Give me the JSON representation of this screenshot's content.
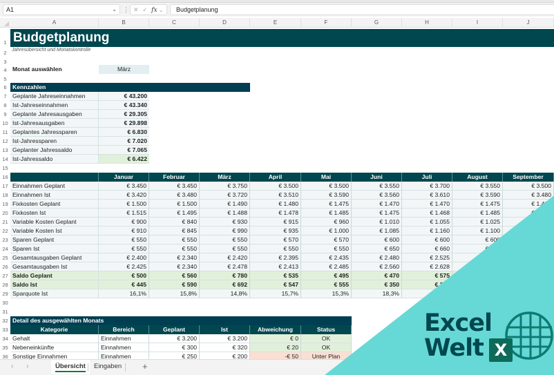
{
  "formula_bar": {
    "name_box": "A1",
    "formula": "Budgetplanung",
    "fx_label": "fx"
  },
  "columns": [
    "A",
    "B",
    "C",
    "D",
    "E",
    "F",
    "G",
    "H",
    "I",
    "J"
  ],
  "rows": [
    "1",
    "2",
    "3",
    "4",
    "5",
    "6",
    "7",
    "8",
    "9",
    "10",
    "11",
    "12",
    "13",
    "14",
    "15",
    "16",
    "17",
    "18",
    "19",
    "20",
    "21",
    "22",
    "23",
    "24",
    "25",
    "26",
    "27",
    "28",
    "29",
    "30",
    "31",
    "32",
    "33",
    "34",
    "35",
    "36"
  ],
  "header": {
    "title": "Budgetplanung",
    "subtitle": "Jahresübersicht und Monatskontrolle"
  },
  "month_selector": {
    "label": "Monat auswählen",
    "value": "März"
  },
  "kpis": {
    "title": "Kennzahlen",
    "items": [
      {
        "label": "Geplante Jahreseinnahmen",
        "value": "€ 43.200"
      },
      {
        "label": "Ist-Jahreseinnahmen",
        "value": "€ 43.340"
      },
      {
        "label": "Geplante Jahresausgaben",
        "value": "€ 29.305"
      },
      {
        "label": "Ist-Jahresausgaben",
        "value": "€ 29.898"
      },
      {
        "label": "Geplantes Jahressparen",
        "value": "€ 6.830"
      },
      {
        "label": "Ist-Jahressparen",
        "value": "€ 7.020"
      },
      {
        "label": "Geplanter Jahressaldo",
        "value": "€ 7.065"
      },
      {
        "label": "Ist-Jahressaldo",
        "value": "€ 6.422"
      }
    ]
  },
  "monthly": {
    "months": [
      "Januar",
      "Februar",
      "März",
      "April",
      "Mai",
      "Juni",
      "Juli",
      "August",
      "September"
    ],
    "rows": [
      {
        "label": "Einnahmen Geplant",
        "values": [
          "€ 3.450",
          "€ 3.450",
          "€ 3.750",
          "€ 3.500",
          "€ 3.500",
          "€ 3.550",
          "€ 3.700",
          "€ 3.550",
          "€ 3.500"
        ]
      },
      {
        "label": "Einnahmen Ist",
        "values": [
          "€ 3.420",
          "€ 3.480",
          "€ 3.720",
          "€ 3.510",
          "€ 3.590",
          "€ 3.560",
          "€ 3.610",
          "€ 3.590",
          "€ 3.480"
        ]
      },
      {
        "label": "Fixkosten Geplant",
        "values": [
          "€ 1.500",
          "€ 1.500",
          "€ 1.490",
          "€ 1.480",
          "€ 1.475",
          "€ 1.470",
          "€ 1.470",
          "€ 1.475",
          "€ 1.480"
        ]
      },
      {
        "label": "Fixkosten Ist",
        "values": [
          "€ 1.515",
          "€ 1.495",
          "€ 1.488",
          "€ 1.478",
          "€ 1.485",
          "€ 1.475",
          "€ 1.468",
          "€ 1.485",
          "€ 1.485"
        ]
      },
      {
        "label": "Variable Kosten Geplant",
        "values": [
          "€ 900",
          "€ 840",
          "€ 930",
          "€ 915",
          "€ 960",
          "€ 1.010",
          "€ 1.055",
          "€ 1.025",
          "€ 9"
        ]
      },
      {
        "label": "Variable Kosten Ist",
        "values": [
          "€ 910",
          "€ 845",
          "€ 990",
          "€ 935",
          "€ 1.000",
          "€ 1.085",
          "€ 1.160",
          "€ 1.100",
          ""
        ]
      },
      {
        "label": "Sparen Geplant",
        "values": [
          "€ 550",
          "€ 550",
          "€ 550",
          "€ 570",
          "€ 570",
          "€ 600",
          "€ 600",
          "€ 600",
          ""
        ]
      },
      {
        "label": "Sparen Ist",
        "values": [
          "€ 550",
          "€ 550",
          "€ 550",
          "€ 550",
          "€ 550",
          "€ 650",
          "€ 660",
          "€ 630",
          ""
        ]
      },
      {
        "label": "Gesamtausgaben Geplant",
        "values": [
          "€ 2.400",
          "€ 2.340",
          "€ 2.420",
          "€ 2.395",
          "€ 2.435",
          "€ 2.480",
          "€ 2.525",
          "€ 2.5",
          ""
        ]
      },
      {
        "label": "Gesamtausgaben Ist",
        "values": [
          "€ 2.425",
          "€ 2.340",
          "€ 2.478",
          "€ 2.413",
          "€ 2.485",
          "€ 2.560",
          "€ 2.628",
          "",
          ""
        ]
      },
      {
        "label": "Saldo Geplant",
        "values": [
          "€ 500",
          "€ 560",
          "€ 780",
          "€ 535",
          "€ 495",
          "€ 470",
          "€ 575",
          "",
          ""
        ],
        "bold": true,
        "highlight": true
      },
      {
        "label": "Saldo Ist",
        "values": [
          "€ 445",
          "€ 590",
          "€ 692",
          "€ 547",
          "€ 555",
          "€ 350",
          "€ 322",
          "",
          ""
        ],
        "bold": true,
        "highlight": true
      },
      {
        "label": "Sparquote Ist",
        "values": [
          "16,1%",
          "15,8%",
          "14,8%",
          "15,7%",
          "15,3%",
          "18,3%",
          "18",
          "",
          ""
        ]
      }
    ]
  },
  "detail": {
    "title": "Detail des ausgewählten Monats",
    "columns": [
      "Kategorie",
      "Bereich",
      "Geplant",
      "Ist",
      "Abweichung",
      "Status"
    ],
    "rows": [
      {
        "kategorie": "Gehalt",
        "bereich": "Einnahmen",
        "geplant": "€ 3.200",
        "ist": "€ 3.200",
        "abweichung": "€ 0",
        "status": "OK",
        "state": "ok"
      },
      {
        "kategorie": "Nebeneinkünfte",
        "bereich": "Einnahmen",
        "geplant": "€ 300",
        "ist": "€ 320",
        "abweichung": "€ 20",
        "status": "OK",
        "state": "ok"
      },
      {
        "kategorie": "Sonstige Einnahmen",
        "bereich": "Einnahmen",
        "geplant": "€ 250",
        "ist": "€ 200",
        "abweichung": "-€ 50",
        "status": "Unter Plan",
        "state": "bad"
      }
    ]
  },
  "sheet_tabs": {
    "nav_prev": "‹",
    "nav_next": "›",
    "tabs": [
      {
        "label": "Übersicht",
        "active": true
      },
      {
        "label": "Eingaben",
        "active": false
      }
    ],
    "add_label": "+"
  },
  "watermark": {
    "line1": "Excel",
    "line2": "Welt",
    "badge": "X",
    "colors": {
      "accent": "#66d9d6",
      "brand": "#00474f",
      "badge": "#0e6b5a"
    }
  },
  "colors": {
    "header_dark": "#00474f",
    "section_dark": "#003e52",
    "label_bg": "#f2f6f7",
    "positive_bg": "#e1f0da",
    "negative_bg": "#fadfd2",
    "selector_bg": "#e2eef2"
  }
}
